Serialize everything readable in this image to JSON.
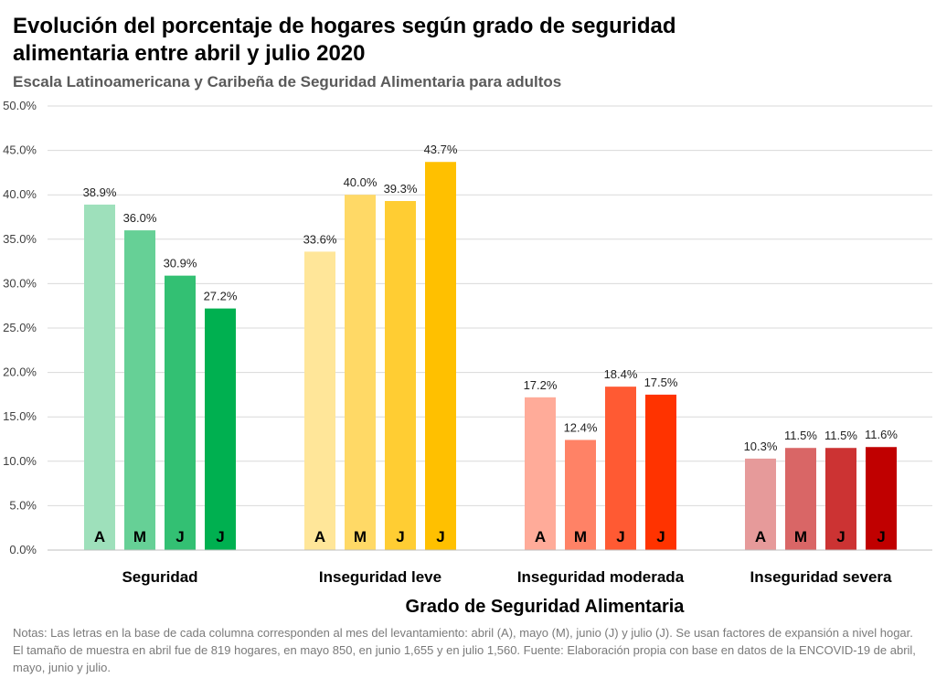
{
  "header": {
    "title_line1": "Evolución del porcentaje de hogares según grado de seguridad",
    "title_line2": "alimentaria entre abril y julio 2020",
    "subtitle": "Escala Latinoamericana y Caribeña de Seguridad Alimentaria para adultos"
  },
  "chart_data": {
    "type": "bar",
    "title": "Evolución del porcentaje de hogares según grado de seguridad alimentaria entre abril y julio 2020",
    "subtitle": "Escala Latinoamericana y Caribeña de Seguridad Alimentaria para adultos",
    "xlabel": "Grado de Seguridad Alimentaria",
    "ylabel": "",
    "ylim": [
      0,
      50
    ],
    "yticks": [
      "0.0%",
      "5.0%",
      "10.0%",
      "15.0%",
      "20.0%",
      "25.0%",
      "30.0%",
      "35.0%",
      "40.0%",
      "45.0%",
      "50.0%"
    ],
    "grid": true,
    "legend": "none",
    "month_letters": [
      "A",
      "M",
      "J",
      "J"
    ],
    "categories": [
      "Seguridad",
      "Inseguridad leve",
      "Inseguridad moderada",
      "Inseguridad severa"
    ],
    "groups": [
      {
        "category": "Seguridad",
        "values": [
          38.9,
          36.0,
          30.9,
          27.2
        ],
        "labels": [
          "38.9%",
          "36.0%",
          "30.9%",
          "27.2%"
        ],
        "colors": [
          "#9ee0bb",
          "#66d096",
          "#33c073",
          "#00b050"
        ]
      },
      {
        "category": "Inseguridad leve",
        "values": [
          33.6,
          40.0,
          39.3,
          43.7
        ],
        "labels": [
          "33.6%",
          "40.0%",
          "39.3%",
          "43.7%"
        ],
        "colors": [
          "#ffe699",
          "#ffd966",
          "#ffcd33",
          "#ffc000"
        ]
      },
      {
        "category": "Inseguridad moderada",
        "values": [
          17.2,
          12.4,
          18.4,
          17.5
        ],
        "labels": [
          "17.2%",
          "12.4%",
          "18.4%",
          "17.5%"
        ],
        "colors": [
          "#ffab99",
          "#ff8266",
          "#ff5a33",
          "#ff3300"
        ]
      },
      {
        "category": "Inseguridad severa",
        "values": [
          10.3,
          11.5,
          11.5,
          11.6
        ],
        "labels": [
          "10.3%",
          "11.5%",
          "11.5%",
          "11.6%"
        ],
        "colors": [
          "#e69a9a",
          "#d96666",
          "#cc3333",
          "#c00000"
        ]
      }
    ]
  },
  "notes": "Notas: Las letras en la base de cada columna corresponden al mes del levantamiento: abril (A), mayo (M), junio (J) y julio (J). Se usan factores de expansión a nivel hogar. El tamaño de muestra en abril fue de 819 hogares, en mayo 850, en junio 1,655 y en julio 1,560. Fuente: Elaboración propia con base en datos de la ENCOVID-19 de abril, mayo, junio y julio."
}
